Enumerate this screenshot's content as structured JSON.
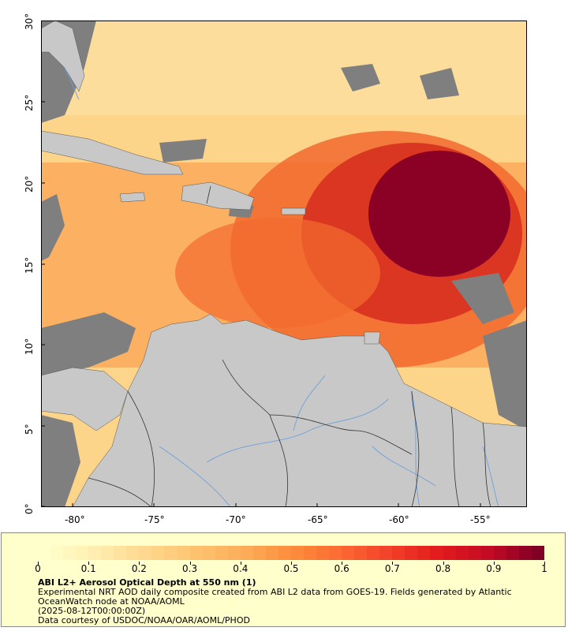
{
  "map": {
    "lon_labels": [
      "-80°",
      "-75°",
      "-70°",
      "-65°",
      "-60°",
      "-55°"
    ],
    "lat_labels": [
      "0°",
      "5°",
      "10°",
      "15°",
      "20°",
      "25°",
      "30°"
    ],
    "colors": {
      "land": "#c8c8c8",
      "no_data": "#7f7f7f",
      "rivers": "#6f9fd8",
      "borders": "#333333"
    }
  },
  "legend": {
    "title": "ABI L2+ Aerosol Optical Depth at 550 nm (1)",
    "description": "Experimental NRT AOD daily composite created from ABI L2 data from GOES-19. Fields generated by Atlantic OceanWatch node at NOAA/AOML",
    "date": "(2025-08-12T00:00:00Z)",
    "credit": "Data courtesy of USDOC/NOAA/OAR/AOML/PHOD",
    "colorbar": {
      "labels": [
        "0",
        "0.1",
        "0.2",
        "0.3",
        "0.4",
        "0.5",
        "0.6",
        "0.7",
        "0.8",
        "0.9",
        "1"
      ],
      "colors": [
        "#ffffcc",
        "#ffefb0",
        "#fed990",
        "#fec470",
        "#fdae5a",
        "#fd8d3c",
        "#fc6a33",
        "#f3402a",
        "#e31a1c",
        "#c40b24",
        "#800026"
      ]
    }
  }
}
